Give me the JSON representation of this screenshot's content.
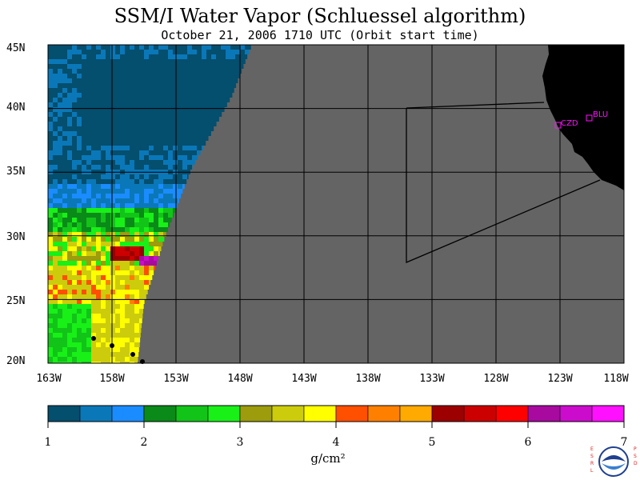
{
  "title": "SSM/I Water Vapor (Schluessel algorithm)",
  "subtitle": "October 21, 2006  1710 UTC  (Orbit start time)",
  "lat_labels": [
    "45N",
    "40N",
    "35N",
    "30N",
    "25N",
    "20N"
  ],
  "lon_labels": [
    "163W",
    "158W",
    "153W",
    "148W",
    "143W",
    "138W",
    "133W",
    "128W",
    "123W",
    "118W"
  ],
  "stations": [
    {
      "label": "CZD"
    },
    {
      "label": "BLU"
    }
  ],
  "colorbar": {
    "ticks": [
      "1",
      "2",
      "3",
      "4",
      "5",
      "6",
      "7"
    ],
    "units": "g/cm²",
    "colors": [
      "#044e6e",
      "#0a78b8",
      "#1a8cff",
      "#0a8a18",
      "#12c418",
      "#18f018",
      "#9c9c0c",
      "#cccc0c",
      "#ffff00",
      "#ff4f00",
      "#ff7f00",
      "#ffaa00",
      "#9c0000",
      "#cc0000",
      "#ff0000",
      "#a80aa0",
      "#cc0ccc",
      "#ff10ff"
    ]
  },
  "logo": {
    "left_text": "ESRL",
    "right_text": "PSD",
    "center_text": "NOAA"
  },
  "map_colors": {
    "nodata": "#646464",
    "land": "#000000",
    "grid": "#000000",
    "station": "#ff10ff"
  }
}
